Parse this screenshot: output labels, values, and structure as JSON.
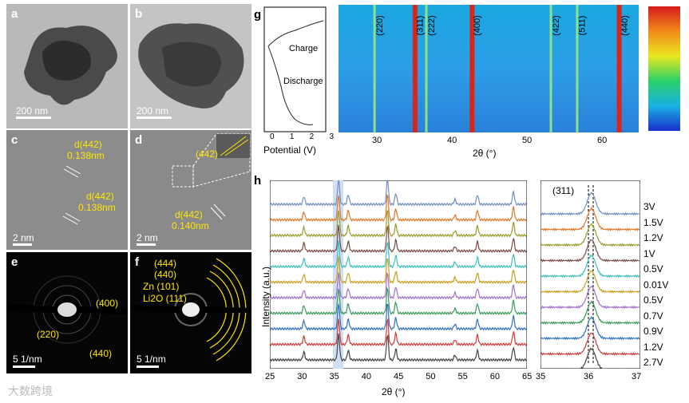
{
  "panels": {
    "a": {
      "label": "a",
      "scale": "200 nm"
    },
    "b": {
      "label": "b",
      "scale": "200 nm"
    },
    "c": {
      "label": "c",
      "scale": "2 nm",
      "d1": "d(442)",
      "d1v": "0.138nm",
      "d2": "d(442)",
      "d2v": "0.138nm"
    },
    "d": {
      "label": "d",
      "scale": "2 nm",
      "inset": "(442)",
      "d1": "d(442)",
      "d1v": "0.140nm"
    },
    "e": {
      "label": "e",
      "scale": "5 1/nm",
      "r400": "(400)",
      "r220": "(220)",
      "r440": "(440)"
    },
    "f": {
      "label": "f",
      "scale": "5 1/nm",
      "r444": "(444)",
      "r440": "(440)",
      "rzn": "Zn (101)",
      "rli": "Li2O (111)"
    },
    "g": {
      "label": "g",
      "charge": "Charge",
      "discharge": "Discharge",
      "xlabel": "Potential (V)",
      "xticks": [
        "0",
        "1",
        "2",
        "3"
      ],
      "peaks": [
        "(220)",
        "(311)",
        "(222)",
        "(400)",
        "(422)",
        "(511)",
        "(440)"
      ],
      "xticks2": [
        "30",
        "40",
        "50",
        "60"
      ],
      "xlabel2": "2θ (°)"
    },
    "h": {
      "label": "h",
      "ylabel": "Intensity (a.u.)",
      "xlabel": "2θ (°)",
      "xticks": [
        "25",
        "30",
        "35",
        "40",
        "45",
        "50",
        "55",
        "60",
        "65"
      ],
      "xticks2": [
        "35",
        "36",
        "37"
      ],
      "peak": "(311)",
      "voltages": [
        "3V",
        "1.5V",
        "1.2V",
        "1V",
        "0.5V",
        "0.01V",
        "0.5V",
        "0.7V",
        "0.9V",
        "1.2V",
        "2.7V"
      ],
      "colors": [
        "#6f8fc4",
        "#e0772a",
        "#9a9a2a",
        "#7a4a4a",
        "#3fbfbf",
        "#c8a020",
        "#a070c8",
        "#3a9a5a",
        "#3070c0",
        "#d03a3a",
        "#444444"
      ]
    }
  },
  "watermark": "大数跨境",
  "chart_data": [
    {
      "type": "line",
      "title": "",
      "xlabel": "2θ (°)",
      "ylabel": "Intensity (a.u.)",
      "xlim": [
        25,
        65
      ],
      "series_names": [
        "3V",
        "1.5V",
        "1.2V",
        "1V",
        "0.5V",
        "0.01V",
        "0.5V",
        "0.7V",
        "0.9V",
        "1.2V",
        "2.7V"
      ],
      "peak_positions": [
        30.3,
        35.7,
        37.2,
        43.3,
        44.6,
        53.8,
        57.3,
        62.9
      ]
    },
    {
      "type": "line",
      "title": "(311)",
      "xlabel": "2θ (°)",
      "xlim": [
        35,
        37
      ],
      "peak_center": 36.0
    }
  ]
}
